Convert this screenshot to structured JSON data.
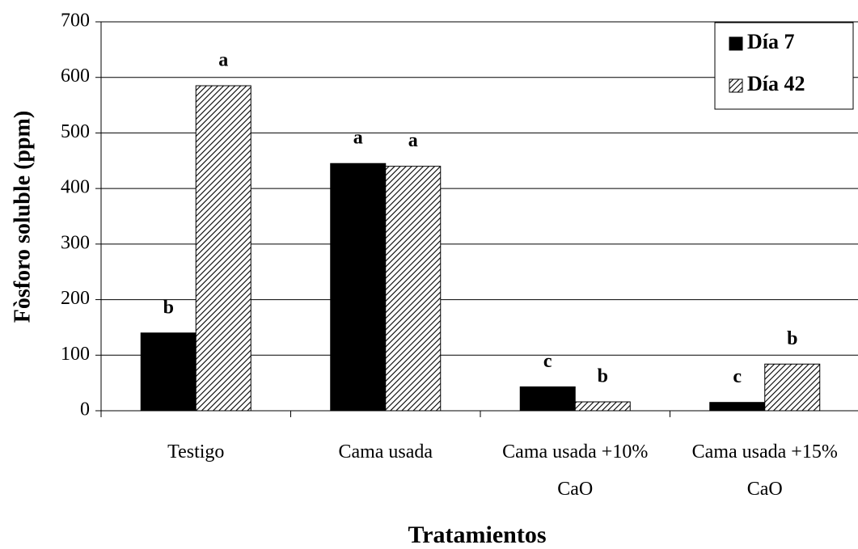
{
  "chart_data": {
    "type": "bar",
    "y_label": "Fòsforo soluble (ppm)",
    "x_label": "Tratamientos",
    "categories": [
      [
        "Testigo"
      ],
      [
        "Cama usada"
      ],
      [
        "Cama usada +10%",
        "CaO"
      ],
      [
        "Cama usada +15%",
        "CaO"
      ]
    ],
    "series": [
      {
        "name": "Día 7",
        "color": "#000000",
        "pattern": "solid",
        "values": [
          140,
          445,
          43,
          15
        ],
        "letters": [
          "b",
          "a",
          "c",
          "c"
        ]
      },
      {
        "name": "Día 42",
        "color": "#000000",
        "pattern": "hatch",
        "values": [
          585,
          440,
          16,
          84
        ],
        "letters": [
          "a",
          "a",
          "b",
          "b"
        ]
      }
    ],
    "ylim": [
      0,
      700
    ],
    "yticks": [
      0,
      100,
      200,
      300,
      400,
      500,
      600,
      700
    ],
    "grid": true,
    "legend": "top-right"
  }
}
